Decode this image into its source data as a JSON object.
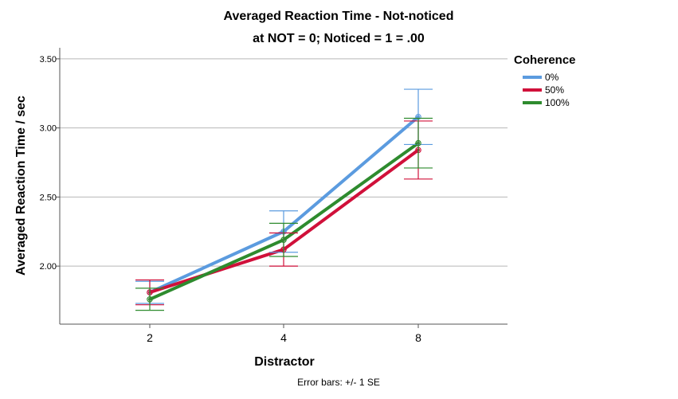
{
  "chart_data": {
    "type": "line",
    "title": "Averaged Reaction Time - Not-noticed",
    "subtitle": "at NOT = 0; Noticed = 1 = .00",
    "xlabel": "Distractor",
    "ylabel": "Averaged Reaction Time / sec",
    "categories": [
      "2",
      "4",
      "8"
    ],
    "ylim": [
      1.58,
      3.58
    ],
    "yticks": [
      2.0,
      2.5,
      3.0,
      3.5
    ],
    "ytick_labels": [
      "2.00",
      "2.50",
      "3.00",
      "3.50"
    ],
    "grid": true,
    "legend": {
      "title": "Coherence",
      "position": "right"
    },
    "series": [
      {
        "name": "0%",
        "color": "#5B9BDF",
        "values": [
          1.81,
          2.25,
          3.08
        ],
        "se": [
          0.08,
          0.15,
          0.2
        ]
      },
      {
        "name": "50%",
        "color": "#D0103A",
        "values": [
          1.81,
          2.12,
          2.84
        ],
        "se": [
          0.09,
          0.12,
          0.21
        ]
      },
      {
        "name": "100%",
        "color": "#2E8B2E",
        "values": [
          1.76,
          2.19,
          2.89
        ],
        "se": [
          0.08,
          0.12,
          0.18
        ]
      }
    ],
    "footnote": "Error bars: +/- 1 SE"
  }
}
